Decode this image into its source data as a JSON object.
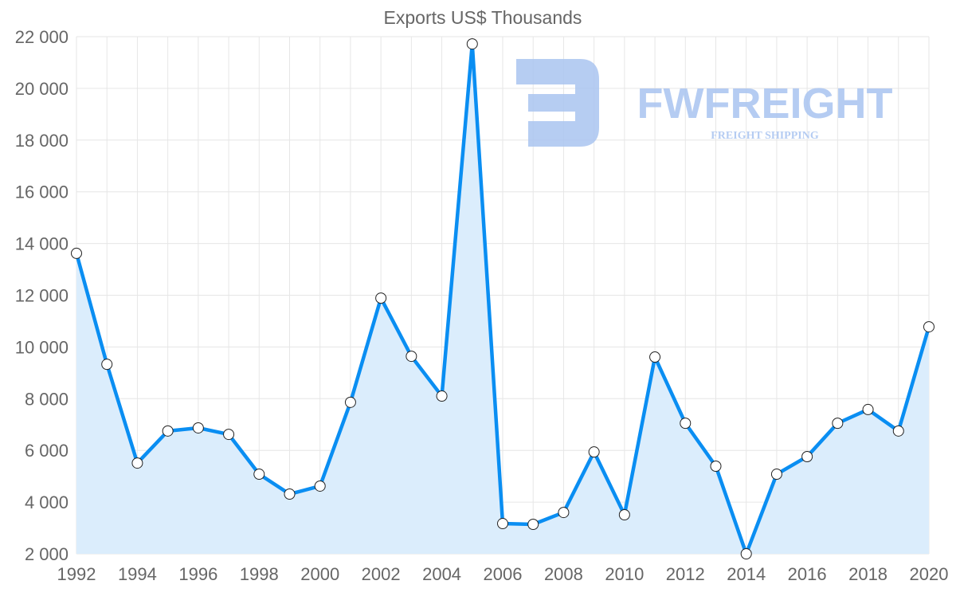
{
  "chart_data": {
    "type": "line",
    "title": "Exports US$ Thousands",
    "xlabel": "",
    "ylabel": "",
    "x": [
      1992,
      1993,
      1994,
      1995,
      1996,
      1997,
      1998,
      1999,
      2000,
      2001,
      2002,
      2003,
      2004,
      2005,
      2006,
      2007,
      2008,
      2009,
      2010,
      2011,
      2012,
      2013,
      2014,
      2015,
      2016,
      2017,
      2018,
      2019,
      2020
    ],
    "series": [
      {
        "name": "Exports",
        "values": [
          13620,
          9330,
          5510,
          6750,
          6870,
          6620,
          5080,
          4310,
          4620,
          7860,
          11890,
          9640,
          8100,
          21720,
          3170,
          3140,
          3600,
          5940,
          3510,
          9610,
          7050,
          5390,
          2000,
          5080,
          5760,
          7050,
          7580,
          6750,
          10780
        ]
      }
    ],
    "xlim": [
      1992,
      2020
    ],
    "ylim": [
      2000,
      22000
    ],
    "x_ticks": [
      "1992",
      "1994",
      "1996",
      "1998",
      "2000",
      "2002",
      "2004",
      "2006",
      "2008",
      "2010",
      "2012",
      "2014",
      "2016",
      "2018",
      "2020"
    ],
    "y_ticks": [
      "2 000",
      "4 000",
      "6 000",
      "8 000",
      "10 000",
      "12 000",
      "14 000",
      "16 000",
      "18 000",
      "20 000",
      "22 000"
    ],
    "grid": true,
    "legend": "none",
    "colors": {
      "line": "#0a8ef2",
      "fill": "#dbedfc",
      "grid": "#e6e6e6",
      "text": "#666666",
      "watermark": "#a9c4f0"
    }
  },
  "watermark": {
    "brand": "FWFREIGHT",
    "tagline": "FREIGHT SHIPPING"
  }
}
